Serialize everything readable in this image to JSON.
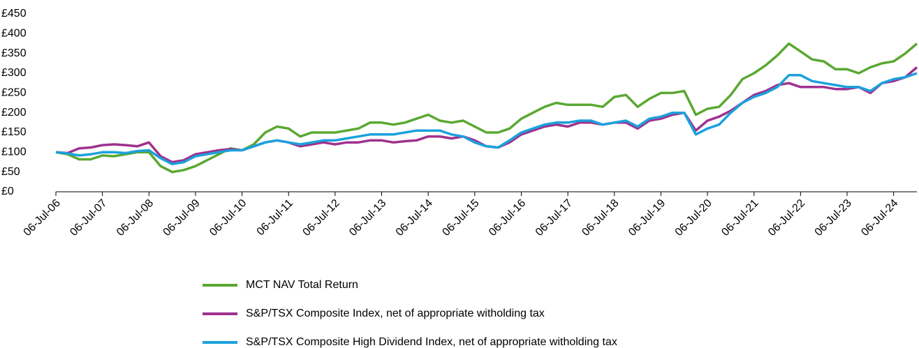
{
  "chart_data": {
    "type": "line",
    "categories": [
      "06-Jul-06",
      null,
      null,
      null,
      "06-Jul-07",
      null,
      null,
      null,
      "06-Jul-08",
      null,
      null,
      null,
      "06-Jul-09",
      null,
      null,
      null,
      "06-Jul-10",
      null,
      null,
      null,
      "06-Jul-11",
      null,
      null,
      null,
      "06-Jul-12",
      null,
      null,
      null,
      "06-Jul-13",
      null,
      null,
      null,
      "06-Jul-14",
      null,
      null,
      null,
      "06-Jul-15",
      null,
      null,
      null,
      "06-Jul-16",
      null,
      null,
      null,
      "06-Jul-17",
      null,
      null,
      null,
      "06-Jul-18",
      null,
      null,
      null,
      "06-Jul-19",
      null,
      null,
      null,
      "06-Jul-20",
      null,
      null,
      null,
      "06-Jul-21",
      null,
      null,
      null,
      "06-Jul-22",
      null,
      null,
      null,
      "06-Jul-23",
      null,
      null,
      null,
      "06-Jul-24",
      null,
      null
    ],
    "series": [
      {
        "name": "MCT NAV  Total Return",
        "color": "#5aa832",
        "values": [
          100,
          95,
          82,
          82,
          92,
          90,
          95,
          100,
          100,
          65,
          50,
          55,
          65,
          80,
          95,
          110,
          105,
          120,
          150,
          165,
          160,
          140,
          150,
          150,
          150,
          155,
          160,
          175,
          175,
          170,
          175,
          185,
          195,
          180,
          175,
          180,
          165,
          150,
          150,
          160,
          185,
          200,
          215,
          225,
          220,
          220,
          220,
          215,
          240,
          245,
          215,
          235,
          250,
          250,
          255,
          195,
          210,
          215,
          245,
          285,
          300,
          320,
          345,
          375,
          355,
          335,
          330,
          310,
          310,
          300,
          315,
          325,
          330,
          350,
          375
        ]
      },
      {
        "name": "S&P/TSX Composite Index, net of appropriate witholding tax",
        "color": "#a0318e",
        "values": [
          100,
          98,
          110,
          112,
          118,
          120,
          118,
          115,
          125,
          90,
          75,
          80,
          95,
          100,
          105,
          108,
          105,
          115,
          125,
          130,
          125,
          115,
          120,
          125,
          120,
          125,
          125,
          130,
          130,
          125,
          128,
          130,
          140,
          140,
          135,
          140,
          130,
          115,
          112,
          125,
          145,
          155,
          165,
          170,
          165,
          175,
          175,
          170,
          175,
          175,
          160,
          180,
          185,
          195,
          200,
          155,
          180,
          190,
          205,
          225,
          245,
          255,
          270,
          275,
          265,
          265,
          265,
          260,
          260,
          265,
          250,
          275,
          280,
          290,
          315
        ]
      },
      {
        "name": "S&P/TSX Composite High Dividend Index, net of appropriate witholding tax",
        "color": "#1ba1dc",
        "values": [
          100,
          97,
          92,
          95,
          100,
          100,
          98,
          103,
          105,
          85,
          70,
          75,
          90,
          95,
          100,
          105,
          105,
          115,
          125,
          130,
          125,
          120,
          125,
          130,
          130,
          135,
          140,
          145,
          145,
          145,
          150,
          155,
          155,
          155,
          145,
          140,
          125,
          115,
          112,
          130,
          150,
          160,
          170,
          175,
          175,
          180,
          180,
          170,
          175,
          180,
          165,
          185,
          190,
          200,
          200,
          145,
          160,
          170,
          200,
          225,
          240,
          250,
          265,
          295,
          295,
          280,
          275,
          270,
          265,
          265,
          255,
          275,
          285,
          290,
          300
        ]
      }
    ],
    "ylim": [
      0,
      450
    ],
    "yticks": [
      {
        "value": 0,
        "label": "£0"
      },
      {
        "value": 50,
        "label": "£50"
      },
      {
        "value": 100,
        "label": "£100"
      },
      {
        "value": 150,
        "label": "£150"
      },
      {
        "value": 200,
        "label": "£200"
      },
      {
        "value": 250,
        "label": "£250"
      },
      {
        "value": 300,
        "label": "£300"
      },
      {
        "value": 350,
        "label": "£350"
      },
      {
        "value": 400,
        "label": "£400"
      },
      {
        "value": 450,
        "label": "£450"
      }
    ],
    "grid": false
  }
}
